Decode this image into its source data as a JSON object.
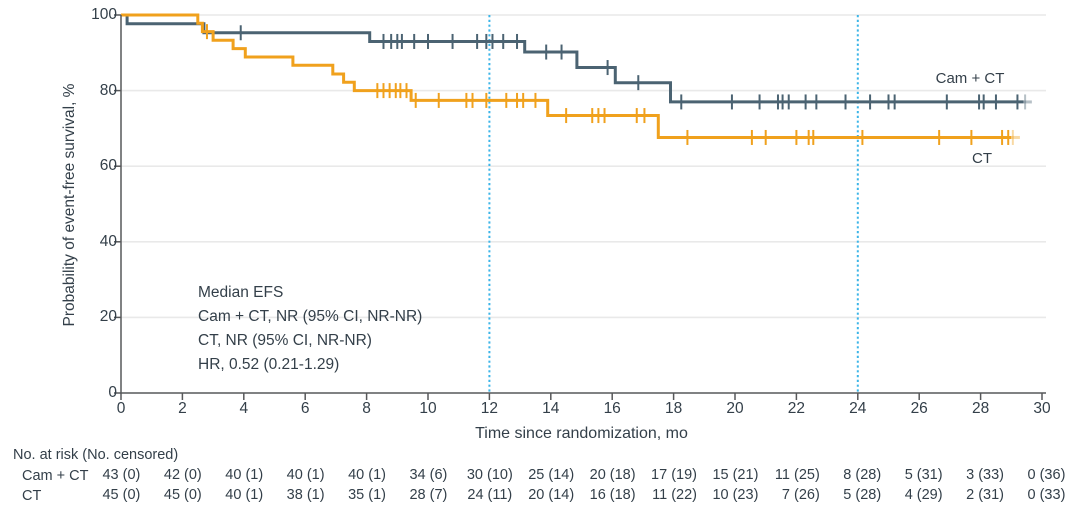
{
  "figure": {
    "y_axis": {
      "label": "Probability of event-free survival, %",
      "ticks": [
        0,
        20,
        40,
        60,
        80,
        100
      ]
    },
    "x_axis": {
      "label": "Time since randomization, mo",
      "ticks": [
        0,
        2,
        4,
        6,
        8,
        10,
        12,
        14,
        16,
        18,
        20,
        22,
        24,
        26,
        28,
        30
      ]
    }
  },
  "annotation": {
    "lines": [
      "Median EFS",
      "Cam + CT, NR (95% CI, NR-NR)",
      "CT, NR (95% CI, NR-NR)",
      "HR, 0.52 (0.21-1.29)"
    ]
  },
  "curve_labels": {
    "cam_ct": "Cam + CT",
    "ct": "CT"
  },
  "risk_table": {
    "title": "No. at risk (No. censored)",
    "rows": [
      {
        "label": "Cam + CT",
        "values": [
          "43 (0)",
          "42 (0)",
          "40 (1)",
          "40 (1)",
          "40 (1)",
          "34 (6)",
          "30 (10)",
          "25 (14)",
          "20 (18)",
          "17 (19)",
          "15 (21)",
          "11 (25)",
          "8 (28)",
          "5 (31)",
          "3 (33)",
          "0 (36)"
        ]
      },
      {
        "label": "CT",
        "values": [
          "45 (0)",
          "45 (0)",
          "40 (1)",
          "38 (1)",
          "35 (1)",
          "28 (7)",
          "24 (11)",
          "20 (14)",
          "16 (18)",
          "11 (22)",
          "10 (23)",
          "7 (26)",
          "5 (28)",
          "4 (29)",
          "2 (31)",
          "0 (33)"
        ]
      }
    ]
  },
  "colors": {
    "cam_ct": "#4b6372",
    "ct": "#f0a11d",
    "reference_line": "#3cb5e8",
    "gridline": "#e9e9e9",
    "axis": "#57585a",
    "text": "#333f49"
  },
  "chart_data": {
    "type": "line",
    "subtype": "kaplan-meier-step",
    "title": "",
    "xlabel": "Time since randomization, mo",
    "ylabel": "Probability of event-free survival, %",
    "xlim": [
      0,
      30
    ],
    "ylim": [
      0,
      100
    ],
    "x_tick_interval": 2,
    "y_tick_interval": 20,
    "grid": "horizontal",
    "legend_position": "inline-right",
    "reference_lines_x": [
      12,
      24
    ],
    "series": [
      {
        "name": "Cam + CT",
        "color": "#4b6372",
        "steps": [
          [
            0,
            100
          ],
          [
            0.2,
            100
          ],
          [
            0.2,
            97.7
          ],
          [
            2.7,
            97.7
          ],
          [
            2.7,
            95.3
          ],
          [
            8.1,
            95.3
          ],
          [
            8.1,
            93
          ],
          [
            13.15,
            93
          ],
          [
            13.15,
            90.2
          ],
          [
            14.85,
            90.2
          ],
          [
            14.85,
            86.1
          ],
          [
            16.1,
            86.1
          ],
          [
            16.1,
            82.1
          ],
          [
            17.9,
            82.1
          ],
          [
            17.9,
            77
          ],
          [
            29.4,
            77
          ]
        ],
        "censors": [
          [
            3.9,
            95.3
          ],
          [
            8.55,
            93
          ],
          [
            8.8,
            93
          ],
          [
            9.0,
            93
          ],
          [
            9.15,
            93
          ],
          [
            9.55,
            93
          ],
          [
            10.0,
            93
          ],
          [
            10.8,
            93
          ],
          [
            11.6,
            93
          ],
          [
            11.9,
            93
          ],
          [
            12.1,
            93
          ],
          [
            12.45,
            93
          ],
          [
            12.9,
            93
          ],
          [
            13.85,
            90.2
          ],
          [
            14.35,
            90.2
          ],
          [
            15.85,
            86.1
          ],
          [
            16.85,
            82.1
          ],
          [
            18.25,
            77
          ],
          [
            19.9,
            77
          ],
          [
            20.8,
            77
          ],
          [
            21.4,
            77
          ],
          [
            21.55,
            77
          ],
          [
            21.75,
            77
          ],
          [
            22.3,
            77
          ],
          [
            22.65,
            77
          ],
          [
            23.6,
            77
          ],
          [
            24.4,
            77
          ],
          [
            25.0,
            77
          ],
          [
            25.2,
            77
          ],
          [
            26.9,
            77
          ],
          [
            27.95,
            77
          ],
          [
            28.1,
            77
          ],
          [
            28.5,
            77
          ],
          [
            29.2,
            77
          ]
        ],
        "fade_tail": {
          "line": [
            29.4,
            29.67
          ],
          "censor": 29.45,
          "level": 77
        }
      },
      {
        "name": "CT",
        "color": "#f0a11d",
        "steps": [
          [
            0,
            100
          ],
          [
            2.5,
            100
          ],
          [
            2.5,
            97.8
          ],
          [
            2.65,
            97.8
          ],
          [
            2.65,
            95.6
          ],
          [
            3.0,
            95.6
          ],
          [
            3.0,
            93.3
          ],
          [
            3.65,
            93.3
          ],
          [
            3.65,
            91.1
          ],
          [
            4.05,
            91.1
          ],
          [
            4.05,
            88.9
          ],
          [
            5.6,
            88.9
          ],
          [
            5.6,
            86.7
          ],
          [
            6.9,
            86.7
          ],
          [
            6.9,
            84.4
          ],
          [
            7.25,
            84.4
          ],
          [
            7.25,
            82.2
          ],
          [
            7.6,
            82.2
          ],
          [
            7.6,
            80
          ],
          [
            9.45,
            80
          ],
          [
            9.45,
            77.4
          ],
          [
            13.9,
            77.4
          ],
          [
            13.9,
            73.4
          ],
          [
            17.5,
            73.4
          ],
          [
            17.5,
            67.6
          ],
          [
            29.0,
            67.6
          ]
        ],
        "censors": [
          [
            2.8,
            95.6
          ],
          [
            8.35,
            80
          ],
          [
            8.55,
            80
          ],
          [
            8.75,
            80
          ],
          [
            8.95,
            80
          ],
          [
            9.1,
            80
          ],
          [
            9.3,
            80
          ],
          [
            9.6,
            77.4
          ],
          [
            10.35,
            77.4
          ],
          [
            11.25,
            77.4
          ],
          [
            11.45,
            77.4
          ],
          [
            11.9,
            77.4
          ],
          [
            12.55,
            77.4
          ],
          [
            12.9,
            77.4
          ],
          [
            13.1,
            77.4
          ],
          [
            13.5,
            77.4
          ],
          [
            14.5,
            73.4
          ],
          [
            15.35,
            73.4
          ],
          [
            15.55,
            73.4
          ],
          [
            15.75,
            73.4
          ],
          [
            16.8,
            73.4
          ],
          [
            17.05,
            73.4
          ],
          [
            18.45,
            67.6
          ],
          [
            20.55,
            67.6
          ],
          [
            21.0,
            67.6
          ],
          [
            22.0,
            67.6
          ],
          [
            22.4,
            67.6
          ],
          [
            22.55,
            67.6
          ],
          [
            24.15,
            67.6
          ],
          [
            26.65,
            67.6
          ],
          [
            27.7,
            67.6
          ],
          [
            28.7,
            67.6
          ],
          [
            28.9,
            67.6
          ]
        ],
        "fade_tail": {
          "line": [
            29.0,
            29.28
          ],
          "censor": 29.05,
          "level": 67.6
        }
      }
    ],
    "at_risk_table": {
      "months": [
        0,
        2,
        4,
        6,
        8,
        10,
        12,
        14,
        16,
        18,
        20,
        22,
        24,
        26,
        28,
        30
      ],
      "cam_ct_at_risk": [
        43,
        42,
        40,
        40,
        40,
        34,
        30,
        25,
        20,
        17,
        15,
        11,
        8,
        5,
        3,
        0
      ],
      "cam_ct_censored": [
        0,
        0,
        1,
        1,
        1,
        6,
        10,
        14,
        18,
        19,
        21,
        25,
        28,
        31,
        33,
        36
      ],
      "ct_at_risk": [
        45,
        45,
        40,
        38,
        35,
        28,
        24,
        20,
        16,
        11,
        10,
        7,
        5,
        4,
        2,
        0
      ],
      "ct_censored": [
        0,
        0,
        1,
        1,
        1,
        7,
        11,
        14,
        18,
        22,
        23,
        26,
        28,
        29,
        31,
        33
      ]
    }
  }
}
